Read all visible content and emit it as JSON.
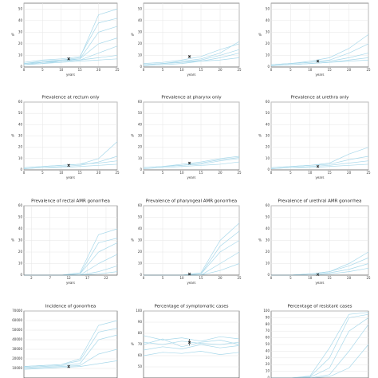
{
  "chart_data": [
    {
      "type": "line",
      "ylabel": "%",
      "xlabel": "years",
      "color": "#a8d8ea",
      "x": [
        0,
        5,
        10,
        15,
        20,
        25
      ],
      "xlim": [
        0,
        25
      ],
      "xticks": [
        0,
        5,
        10,
        15,
        20,
        25
      ],
      "ylim": [
        0,
        55
      ],
      "yticks": [
        0,
        10,
        20,
        30,
        40,
        50
      ],
      "series": [
        {
          "values": [
            3,
            5,
            6,
            8,
            45,
            50
          ]
        },
        {
          "values": [
            2,
            4,
            5,
            7,
            30,
            35
          ]
        },
        {
          "values": [
            3,
            4,
            6,
            7,
            20,
            25
          ]
        },
        {
          "values": [
            2,
            3,
            5,
            6,
            12,
            18
          ]
        },
        {
          "values": [
            3,
            4,
            5,
            6,
            8,
            10
          ]
        },
        {
          "values": [
            2,
            3,
            4,
            5,
            6,
            7
          ]
        },
        {
          "values": [
            4,
            6,
            7,
            9,
            38,
            42
          ]
        }
      ],
      "point": {
        "x": 12,
        "y": 7,
        "error": 1
      }
    },
    {
      "type": "line",
      "ylabel": "%",
      "xlabel": "years",
      "color": "#a8d8ea",
      "x": [
        0,
        5,
        10,
        15,
        20,
        25
      ],
      "xlim": [
        0,
        25
      ],
      "xticks": [
        0,
        5,
        10,
        15,
        20,
        25
      ],
      "ylim": [
        0,
        55
      ],
      "yticks": [
        0,
        10,
        20,
        30,
        40,
        50
      ],
      "series": [
        {
          "values": [
            2,
            3,
            4,
            6,
            10,
            15
          ]
        },
        {
          "values": [
            2,
            3,
            5,
            7,
            12,
            22
          ]
        },
        {
          "values": [
            1,
            2,
            3,
            5,
            8,
            12
          ]
        },
        {
          "values": [
            2,
            3,
            4,
            5,
            6,
            8
          ]
        },
        {
          "values": [
            3,
            4,
            6,
            9,
            15,
            20
          ]
        }
      ],
      "point": {
        "x": 12,
        "y": 9,
        "error": 1
      }
    },
    {
      "type": "line",
      "ylabel": "%",
      "xlabel": "years",
      "color": "#a8d8ea",
      "x": [
        0,
        5,
        10,
        15,
        20,
        25
      ],
      "xlim": [
        0,
        25
      ],
      "xticks": [
        0,
        5,
        10,
        15,
        20,
        25
      ],
      "ylim": [
        0,
        55
      ],
      "yticks": [
        0,
        10,
        20,
        30,
        40,
        50
      ],
      "series": [
        {
          "values": [
            2,
            3,
            4,
            6,
            12,
            20
          ]
        },
        {
          "values": [
            2,
            3,
            4,
            5,
            8,
            12
          ]
        },
        {
          "values": [
            1,
            2,
            3,
            4,
            6,
            8
          ]
        },
        {
          "values": [
            2,
            3,
            5,
            8,
            16,
            28
          ]
        },
        {
          "values": [
            1,
            2,
            3,
            4,
            5,
            6
          ]
        }
      ],
      "point": {
        "x": 12,
        "y": 5,
        "error": 1
      }
    },
    {
      "type": "line",
      "title": "Prevalence at rectum only",
      "ylabel": "%",
      "xlabel": "years",
      "color": "#a8d8ea",
      "x": [
        0,
        5,
        10,
        15,
        20,
        25
      ],
      "xlim": [
        0,
        25
      ],
      "xticks": [
        0,
        5,
        10,
        15,
        20,
        25
      ],
      "ylim": [
        0,
        60
      ],
      "yticks": [
        0,
        10,
        20,
        30,
        40,
        50,
        60
      ],
      "series": [
        {
          "values": [
            2,
            3,
            4,
            5,
            10,
            25
          ]
        },
        {
          "values": [
            1,
            2,
            3,
            4,
            7,
            12
          ]
        },
        {
          "values": [
            2,
            3,
            4,
            5,
            6,
            8
          ]
        },
        {
          "values": [
            1,
            2,
            2,
            3,
            4,
            5
          ]
        }
      ],
      "point": {
        "x": 12,
        "y": 4,
        "error": 1
      }
    },
    {
      "type": "line",
      "title": "Prevalence at pharynx only",
      "ylabel": "%",
      "xlabel": "years",
      "color": "#a8d8ea",
      "x": [
        0,
        5,
        10,
        15,
        20,
        25
      ],
      "xlim": [
        0,
        25
      ],
      "xticks": [
        0,
        5,
        10,
        15,
        20,
        25
      ],
      "ylim": [
        0,
        60
      ],
      "yticks": [
        0,
        10,
        20,
        30,
        40,
        50,
        60
      ],
      "series": [
        {
          "values": [
            2,
            3,
            5,
            7,
            10,
            12
          ]
        },
        {
          "values": [
            2,
            3,
            4,
            5,
            8,
            10
          ]
        },
        {
          "values": [
            1,
            2,
            3,
            4,
            5,
            7
          ]
        },
        {
          "values": [
            2,
            3,
            4,
            6,
            9,
            11
          ]
        }
      ],
      "point": {
        "x": 12,
        "y": 6,
        "error": 1
      }
    },
    {
      "type": "line",
      "title": "Prevalence at urethra only",
      "ylabel": "%",
      "xlabel": "years",
      "color": "#a8d8ea",
      "x": [
        0,
        5,
        10,
        15,
        20,
        25
      ],
      "xlim": [
        0,
        25
      ],
      "xticks": [
        0,
        5,
        10,
        15,
        20,
        25
      ],
      "ylim": [
        0,
        60
      ],
      "yticks": [
        0,
        10,
        20,
        30,
        40,
        50,
        60
      ],
      "series": [
        {
          "values": [
            2,
            3,
            4,
            6,
            14,
            20
          ]
        },
        {
          "values": [
            1,
            2,
            3,
            4,
            6,
            8
          ]
        },
        {
          "values": [
            1,
            2,
            2,
            3,
            4,
            5
          ]
        },
        {
          "values": [
            2,
            3,
            4,
            5,
            9,
            12
          ]
        }
      ],
      "point": {
        "x": 12,
        "y": 3,
        "error": 1
      }
    },
    {
      "type": "line",
      "title": "Prevalence of rectal AMR gonorrhea",
      "ylabel": "%",
      "xlabel": "years",
      "color": "#a8d8ea",
      "x": [
        0,
        5,
        10,
        15,
        20,
        25
      ],
      "xlim": [
        0,
        25
      ],
      "xticks": [
        2,
        7,
        12,
        17,
        22
      ],
      "ylim": [
        0,
        60
      ],
      "yticks": [
        0,
        10,
        20,
        30,
        40,
        50,
        60
      ],
      "series": [
        {
          "values": [
            0,
            0,
            0,
            2,
            35,
            40
          ]
        },
        {
          "values": [
            0,
            0,
            0,
            1,
            20,
            28
          ]
        },
        {
          "values": [
            0,
            0,
            0,
            0,
            10,
            18
          ]
        },
        {
          "values": [
            0,
            0,
            0,
            0,
            3,
            8
          ]
        },
        {
          "values": [
            0,
            0,
            0,
            1,
            28,
            32
          ]
        },
        {
          "values": [
            0,
            0,
            0,
            0,
            1,
            3
          ]
        }
      ]
    },
    {
      "type": "line",
      "title": "Prevalence of pharyngeal AMR gonorrhea",
      "ylabel": "%",
      "xlabel": "years",
      "color": "#a8d8ea",
      "x": [
        0,
        5,
        10,
        15,
        20,
        25
      ],
      "xlim": [
        0,
        25
      ],
      "xticks": [
        0,
        5,
        10,
        15,
        20,
        25
      ],
      "ylim": [
        0,
        60
      ],
      "yticks": [
        0,
        10,
        20,
        30,
        40,
        50,
        60
      ],
      "series": [
        {
          "values": [
            0,
            0,
            0,
            2,
            30,
            45
          ]
        },
        {
          "values": [
            0,
            0,
            0,
            1,
            20,
            30
          ]
        },
        {
          "values": [
            0,
            0,
            0,
            0,
            10,
            20
          ]
        },
        {
          "values": [
            0,
            0,
            0,
            0,
            4,
            10
          ]
        },
        {
          "values": [
            0,
            0,
            0,
            1,
            25,
            38
          ]
        }
      ],
      "point": {
        "x": 12,
        "y": 1,
        "error": 0.5
      }
    },
    {
      "type": "line",
      "title": "Prevalence of urethral AMR gonorrhea",
      "ylabel": "%",
      "xlabel": "years",
      "color": "#a8d8ea",
      "x": [
        0,
        5,
        10,
        15,
        20,
        25
      ],
      "xlim": [
        0,
        25
      ],
      "xticks": [
        0,
        5,
        10,
        15,
        20,
        25
      ],
      "ylim": [
        0,
        60
      ],
      "yticks": [
        0,
        10,
        20,
        30,
        40,
        50,
        60
      ],
      "series": [
        {
          "values": [
            0,
            0,
            1,
            3,
            8,
            15
          ]
        },
        {
          "values": [
            0,
            0,
            1,
            2,
            5,
            10
          ]
        },
        {
          "values": [
            0,
            0,
            0,
            1,
            3,
            6
          ]
        },
        {
          "values": [
            0,
            0,
            1,
            3,
            10,
            20
          ]
        }
      ],
      "point": {
        "x": 12,
        "y": 0.5,
        "error": 0.3
      }
    },
    {
      "type": "line",
      "title": "Incidence of gonorrhea",
      "color": "#a8d8ea",
      "x": [
        0,
        5,
        10,
        15,
        20,
        25
      ],
      "xlim": [
        0,
        25
      ],
      "ylim": [
        0,
        70000
      ],
      "yticks": [
        10000,
        20000,
        30000,
        40000,
        50000,
        60000,
        70000
      ],
      "series": [
        {
          "values": [
            12000,
            13000,
            14000,
            20000,
            55000,
            60000
          ]
        },
        {
          "values": [
            11000,
            12000,
            13000,
            15000,
            40000,
            45000
          ]
        },
        {
          "values": [
            10000,
            11000,
            12000,
            13000,
            25000,
            30000
          ]
        },
        {
          "values": [
            9000,
            10000,
            11000,
            12000,
            15000,
            18000
          ]
        },
        {
          "values": [
            12000,
            13000,
            14000,
            18000,
            48000,
            52000
          ]
        }
      ],
      "point": {
        "x": 12,
        "y": 12000,
        "error": 1500
      }
    },
    {
      "type": "line",
      "title": "Percentage of symptomatic cases",
      "ylabel": "%",
      "color": "#a8d8ea",
      "x": [
        0,
        5,
        10,
        15,
        20,
        25
      ],
      "xlim": [
        0,
        25
      ],
      "ylim": [
        40,
        100
      ],
      "yticks": [
        50,
        60,
        70,
        80,
        90,
        100
      ],
      "series": [
        {
          "values": [
            70,
            75,
            68,
            72,
            74,
            70
          ]
        },
        {
          "values": [
            65,
            68,
            66,
            70,
            67,
            69
          ]
        },
        {
          "values": [
            78,
            74,
            76,
            73,
            77,
            75
          ]
        },
        {
          "values": [
            60,
            63,
            62,
            64,
            61,
            63
          ]
        },
        {
          "values": [
            72,
            70,
            73,
            71,
            70,
            72
          ]
        }
      ],
      "point": {
        "x": 12,
        "y": 72,
        "error": 3
      }
    },
    {
      "type": "line",
      "title": "Percentage of resistant cases",
      "color": "#a8d8ea",
      "x": [
        0,
        5,
        10,
        15,
        20,
        25
      ],
      "xlim": [
        0,
        25
      ],
      "ylim": [
        0,
        100
      ],
      "yticks": [
        0,
        10,
        20,
        30,
        40,
        50,
        60,
        70,
        80,
        90,
        100
      ],
      "series": [
        {
          "values": [
            0,
            0,
            2,
            30,
            90,
            95
          ]
        },
        {
          "values": [
            0,
            0,
            1,
            15,
            70,
            90
          ]
        },
        {
          "values": [
            0,
            0,
            0,
            5,
            40,
            80
          ]
        },
        {
          "values": [
            0,
            0,
            3,
            45,
            95,
            98
          ]
        },
        {
          "values": [
            0,
            0,
            0,
            2,
            15,
            50
          ]
        }
      ]
    }
  ]
}
